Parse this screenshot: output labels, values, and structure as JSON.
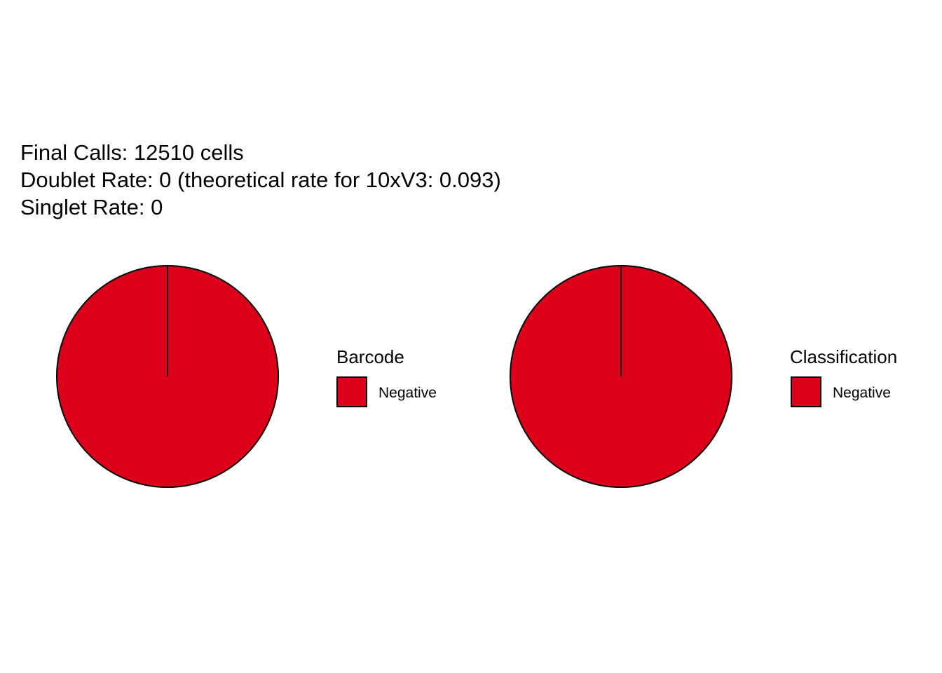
{
  "header": {
    "lines": [
      "Final Calls: 12510 cells",
      "Doublet Rate: 0 (theoretical rate for 10xV3: 0.093)",
      "Singlet Rate: 0"
    ]
  },
  "chart_data": [
    {
      "type": "pie",
      "legend_title": "Barcode",
      "legend_position": "right",
      "slices": [
        {
          "label": "Negative",
          "value": 12510,
          "color": "#DC001A"
        }
      ]
    },
    {
      "type": "pie",
      "legend_title": "Classification",
      "legend_position": "right",
      "slices": [
        {
          "label": "Negative",
          "value": 12510,
          "color": "#DC001A"
        }
      ]
    }
  ]
}
